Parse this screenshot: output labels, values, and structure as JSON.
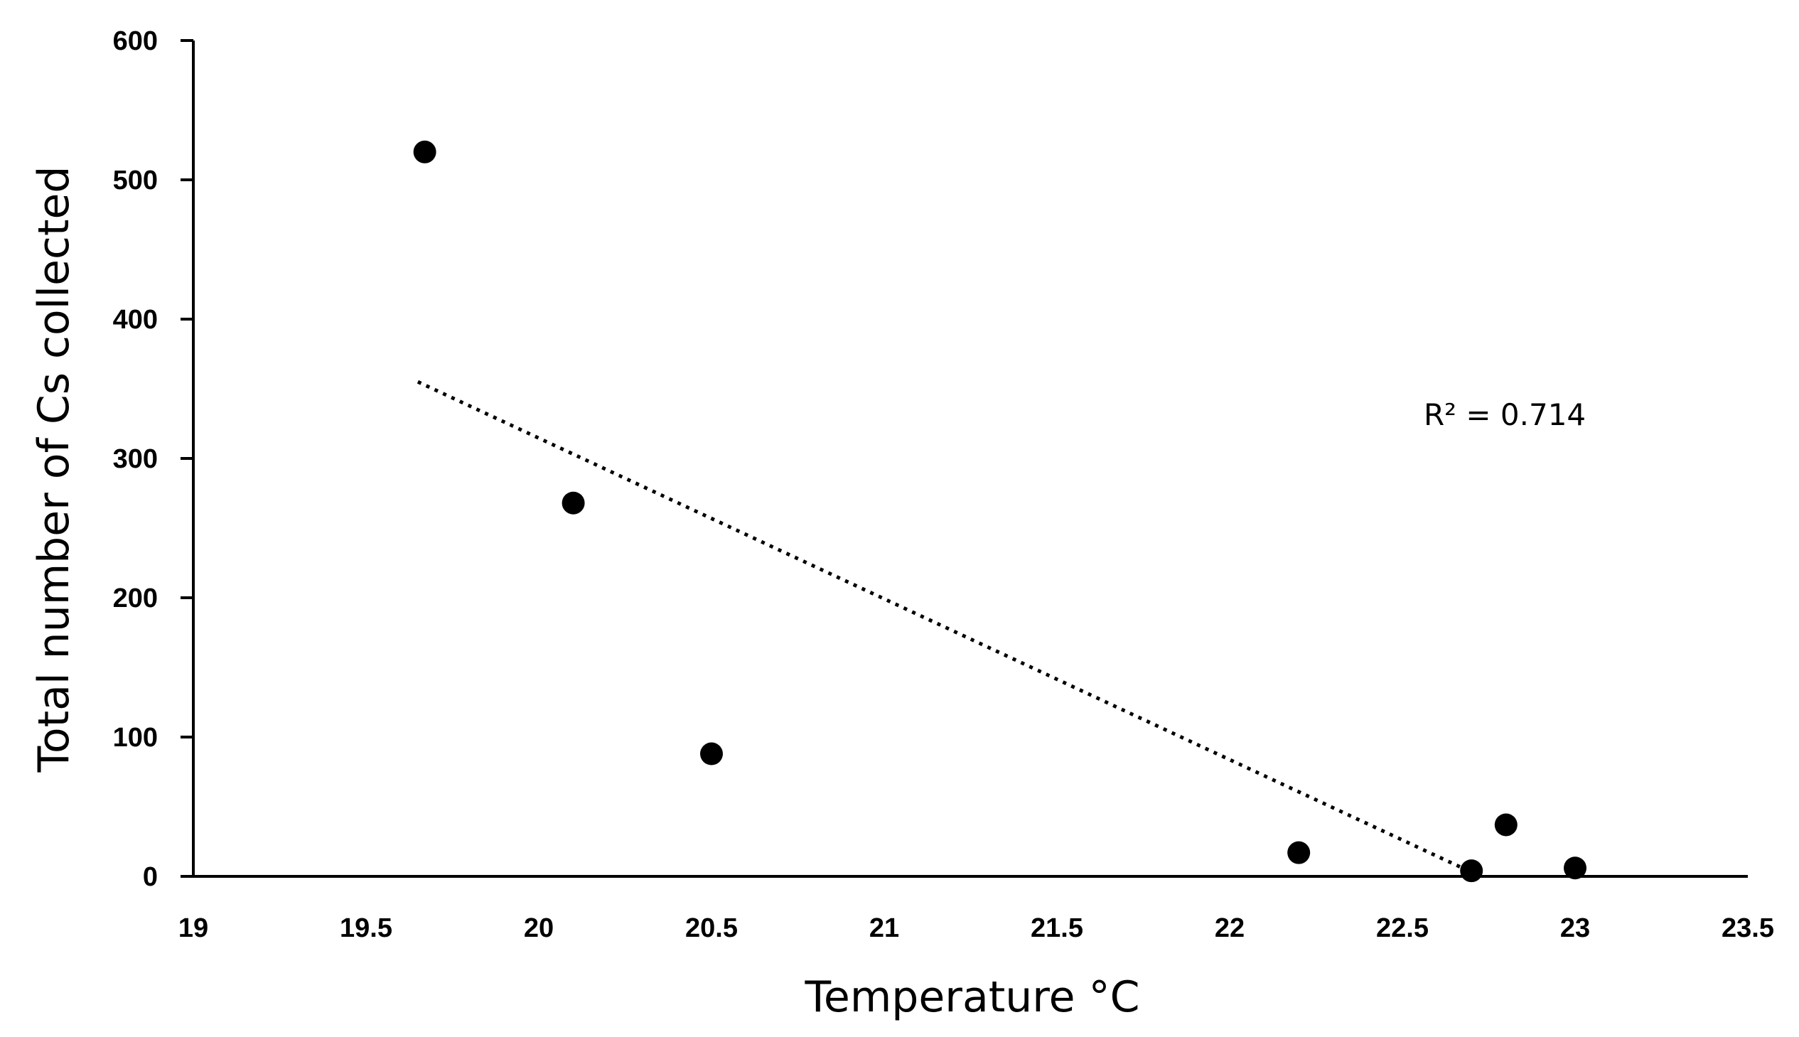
{
  "chart_data": {
    "type": "scatter",
    "title": "",
    "xlabel": "Temperature °C",
    "ylabel": "Total number of Cs collected",
    "xlim": [
      19,
      23.5
    ],
    "ylim": [
      0,
      600
    ],
    "xticks": [
      "19",
      "19.5",
      "20",
      "20.5",
      "21",
      "21.5",
      "22",
      "22.5",
      "23",
      "23.5"
    ],
    "yticks": [
      "0",
      "100",
      "200",
      "300",
      "400",
      "500",
      "600"
    ],
    "grid": false,
    "points": [
      {
        "x": 19.67,
        "y": 520
      },
      {
        "x": 20.1,
        "y": 268
      },
      {
        "x": 20.5,
        "y": 88
      },
      {
        "x": 22.2,
        "y": 17
      },
      {
        "x": 22.7,
        "y": 4
      },
      {
        "x": 22.8,
        "y": 37
      },
      {
        "x": 23.0,
        "y": 6
      }
    ],
    "trendline": {
      "style": "dotted",
      "from": {
        "x": 19.65,
        "y": 355
      },
      "to": {
        "x": 22.7,
        "y": 3
      }
    },
    "annotation": "R² = 0.714"
  }
}
